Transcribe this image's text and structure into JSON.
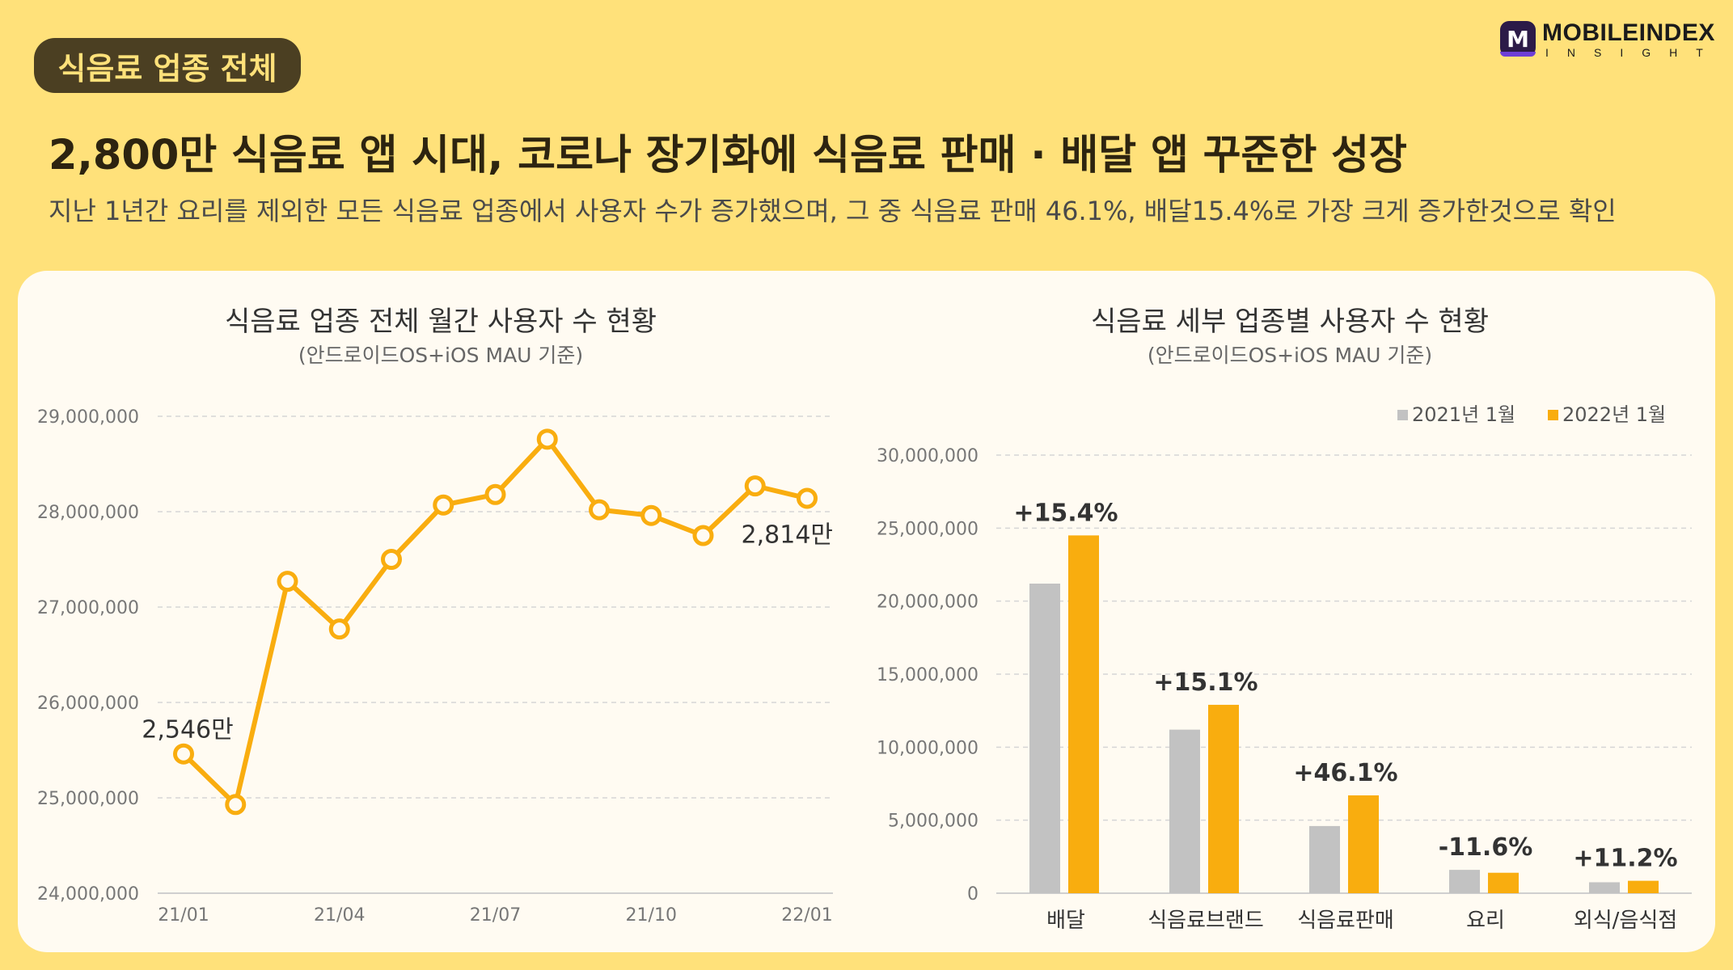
{
  "header": {
    "tag": "식음료 업종 전체",
    "title": "2,800만 식음료 앱 시대, 코로나 장기화에 식음료 판매 · 배달 앱 꾸준한 성장",
    "subtitle": "지난 1년간 요리를 제외한 모든 식음료 업종에서 사용자 수가 증가했으며, 그 중 식음료 판매 46.1%, 배달15.4%로 가장 크게 증가한것으로 확인"
  },
  "logo": {
    "icon_letter": "M",
    "name": "MOBILEINDEX",
    "sub": "INSIGHT",
    "icon": "mobileindex-logo-icon"
  },
  "colors": {
    "background": "#FFE17A",
    "accent": "#F9AD0F",
    "gray": "#C2C2C2",
    "tag_bg": "#4B3F22"
  },
  "chart_data": [
    {
      "type": "line",
      "title": "식음료 업종 전체 월간 사용자 수 현황",
      "subtitle": "(안드로이드OS+iOS MAU 기준)",
      "x": [
        "21/01",
        "21/02",
        "21/03",
        "21/04",
        "21/05",
        "21/06",
        "21/07",
        "21/08",
        "21/09",
        "21/10",
        "21/11",
        "21/12",
        "22/01"
      ],
      "x_tick_labels": [
        "21/01",
        "",
        "",
        "21/04",
        "",
        "",
        "21/07",
        "",
        "",
        "21/10",
        "",
        "",
        "22/01"
      ],
      "values": [
        25460000,
        24930000,
        27270000,
        26770000,
        27500000,
        28070000,
        28180000,
        28760000,
        28020000,
        27960000,
        27750000,
        28270000,
        28140000
      ],
      "ylim": [
        24000000,
        29000000
      ],
      "y_ticks": [
        "29,000,000",
        "28,000,000",
        "27,000,000",
        "26,000,000",
        "25,000,000",
        "24,000,000"
      ],
      "annotations": [
        {
          "index": 0,
          "text": "2,546만"
        },
        {
          "index": 12,
          "text": "2,814만"
        }
      ],
      "grid": true
    },
    {
      "type": "bar",
      "title": "식음료 세부 업종별 사용자 수 현황",
      "subtitle": "(안드로이드OS+iOS MAU 기준)",
      "categories": [
        "배달",
        "식음료브랜드",
        "식음료판매",
        "요리",
        "외식/음식점"
      ],
      "series": [
        {
          "name": "2021년 1월",
          "color": "#C2C2C2",
          "values": [
            21200000,
            11200000,
            4600000,
            1600000,
            750000
          ]
        },
        {
          "name": "2022년 1월",
          "color": "#F9AD0F",
          "values": [
            24500000,
            12900000,
            6700000,
            1400000,
            850000
          ]
        }
      ],
      "change_labels": [
        "+15.4%",
        "+15.1%",
        "+46.1%",
        "-11.6%",
        "+11.2%"
      ],
      "ylim": [
        0,
        30000000
      ],
      "y_ticks": [
        "30,000,000",
        "25,000,000",
        "20,000,000",
        "15,000,000",
        "10,000,000",
        "5,000,000",
        "0"
      ],
      "legend": "top-right",
      "grid": true
    }
  ]
}
